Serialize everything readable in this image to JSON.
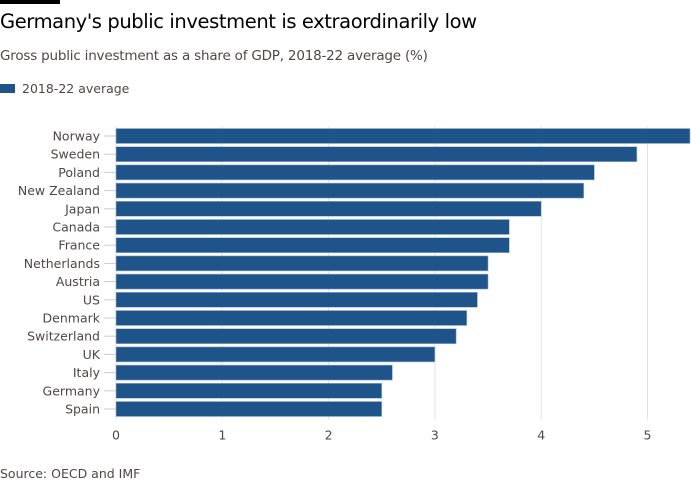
{
  "title": "Germany's public investment is extraordinarily low",
  "subtitle": "Gross public investment as a share of GDP, 2018-22 average (%)",
  "source": "Source: OECD and IMF",
  "colors": {
    "bar": "#1f548a",
    "grid": "#e6e2df",
    "text": "#4d4845"
  },
  "chart_data": {
    "type": "bar",
    "orientation": "horizontal",
    "title": "Germany's public investment is extraordinarily low",
    "subtitle": "Gross public investment as a share of GDP, 2018-22 average (%)",
    "categories": [
      "Norway",
      "Sweden",
      "Poland",
      "New Zealand",
      "Japan",
      "Canada",
      "France",
      "Netherlands",
      "Austria",
      "US",
      "Denmark",
      "Switzerland",
      "UK",
      "Italy",
      "Germany",
      "Spain"
    ],
    "series": [
      {
        "name": "2018-22 average",
        "values": [
          5.4,
          4.9,
          4.5,
          4.4,
          4.0,
          3.7,
          3.7,
          3.5,
          3.5,
          3.4,
          3.3,
          3.2,
          3.0,
          2.6,
          2.5,
          2.5
        ]
      }
    ],
    "xticks": [
      0,
      1,
      2,
      3,
      4,
      5
    ],
    "xlim": [
      0,
      5.4
    ],
    "grid": true,
    "legend": "top-left"
  }
}
